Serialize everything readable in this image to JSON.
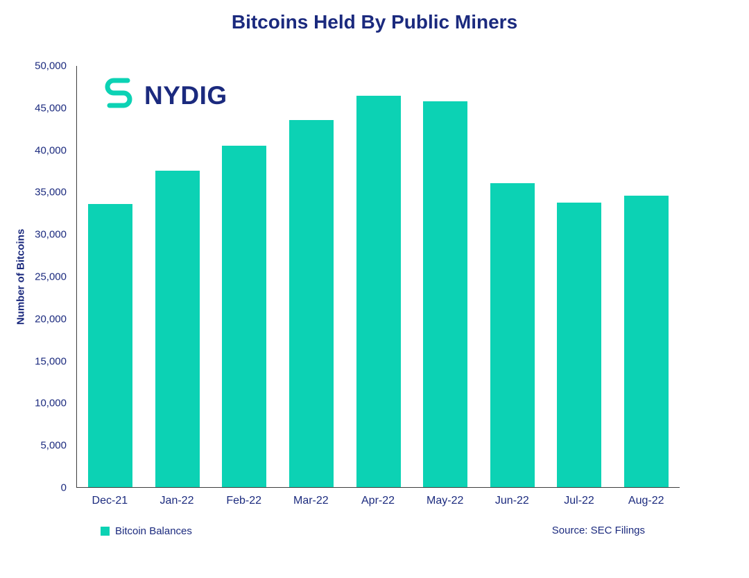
{
  "page": {
    "title": "Bitcoins Held By Public Miners"
  },
  "logo": {
    "text": "NYDIG",
    "icon": "nydig-s-mark-icon",
    "teal": "#0CD2B4",
    "navy": "#1B2A7E"
  },
  "chart_data": {
    "type": "bar",
    "title": "Bitcoins Held By Public Miners",
    "categories": [
      "Dec-21",
      "Jan-22",
      "Feb-22",
      "Mar-22",
      "Apr-22",
      "May-22",
      "Jun-22",
      "Jul-22",
      "Aug-22"
    ],
    "values": [
      33600,
      37600,
      40500,
      43600,
      46500,
      45800,
      36100,
      33800,
      34600
    ],
    "series": [
      {
        "name": "Bitcoin Balances",
        "values": [
          33600,
          37600,
          40500,
          43600,
          46500,
          45800,
          36100,
          33800,
          34600
        ]
      }
    ],
    "xlabel": "",
    "ylabel": "Number of Bitcoins",
    "ylim": [
      0,
      50000
    ],
    "yticks": [
      0,
      5000,
      10000,
      15000,
      20000,
      25000,
      30000,
      35000,
      40000,
      45000,
      50000
    ],
    "ytick_labels": [
      "0",
      "5,000",
      "10,000",
      "15,000",
      "20,000",
      "25,000",
      "30,000",
      "35,000",
      "40,000",
      "45,000",
      "50,000"
    ],
    "grid": false,
    "bar_color": "#0CD2B4",
    "legend_position": "bottom-left"
  },
  "footer": {
    "legend_label": "Bitcoin Balances",
    "source": "Source: SEC Filings"
  }
}
